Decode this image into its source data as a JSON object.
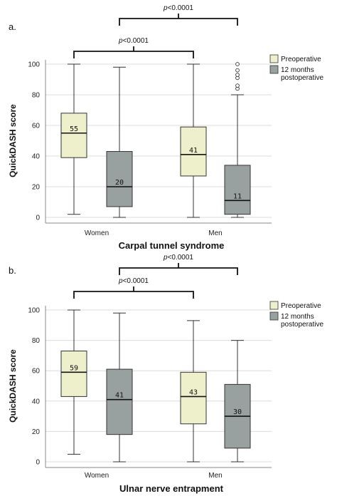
{
  "colors": {
    "preoperative": "#eef0cc",
    "postoperative": "#98a1a0",
    "grid": "#dcdcdc",
    "stroke": "#333333"
  },
  "legend": {
    "series1": "Preoperative",
    "series2_line1": "12 months",
    "series2_line2": "postoperative"
  },
  "chart_data": [
    {
      "type": "box",
      "panel_label": "a.",
      "title": "",
      "xlabel": "Carpal tunnel syndrome",
      "ylabel": "QuickDASH score",
      "ylim": [
        0,
        100
      ],
      "yticks": [
        "0",
        "20",
        "40",
        "60",
        "80",
        "100"
      ],
      "categories": [
        "Women",
        "Men"
      ],
      "grid": true,
      "legend_position": "top-right",
      "p_women": "p<0.0001",
      "p_men": "p<0.0001",
      "series": [
        {
          "name": "Preoperative",
          "boxes": [
            {
              "min": 2,
              "q1": 39,
              "median": 55,
              "q3": 68,
              "max": 100,
              "label": "55",
              "outliers": []
            },
            {
              "min": 0,
              "q1": 27,
              "median": 41,
              "q3": 59,
              "max": 100,
              "label": "41",
              "outliers": []
            }
          ]
        },
        {
          "name": "12 months postoperative",
          "boxes": [
            {
              "min": 0,
              "q1": 7,
              "median": 20,
              "q3": 43,
              "max": 98,
              "label": "20",
              "outliers": []
            },
            {
              "min": 0,
              "q1": 2,
              "median": 11,
              "q3": 34,
              "max": 80,
              "label": "11",
              "outliers": [
                84,
                86,
                91,
                93,
                96,
                100
              ]
            }
          ]
        }
      ]
    },
    {
      "type": "box",
      "panel_label": "b.",
      "title": "",
      "xlabel": "Ulnar nerve entrapment",
      "ylabel": "QuickDASH score",
      "ylim": [
        0,
        100
      ],
      "yticks": [
        "0",
        "20",
        "40",
        "60",
        "80",
        "100"
      ],
      "categories": [
        "Women",
        "Men"
      ],
      "grid": true,
      "legend_position": "top-right",
      "p_women": "p<0.0001",
      "p_men": "p<0.0001",
      "series": [
        {
          "name": "Preoperative",
          "boxes": [
            {
              "min": 5,
              "q1": 43,
              "median": 59,
              "q3": 73,
              "max": 100,
              "label": "59",
              "outliers": []
            },
            {
              "min": 0,
              "q1": 25,
              "median": 43,
              "q3": 59,
              "max": 93,
              "label": "43",
              "outliers": []
            }
          ]
        },
        {
          "name": "12 months postoperative",
          "boxes": [
            {
              "min": 0,
              "q1": 18,
              "median": 41,
              "q3": 61,
              "max": 98,
              "label": "41",
              "outliers": []
            },
            {
              "min": 0,
              "q1": 9,
              "median": 30,
              "q3": 51,
              "max": 80,
              "label": "30",
              "outliers": []
            }
          ]
        }
      ]
    }
  ]
}
